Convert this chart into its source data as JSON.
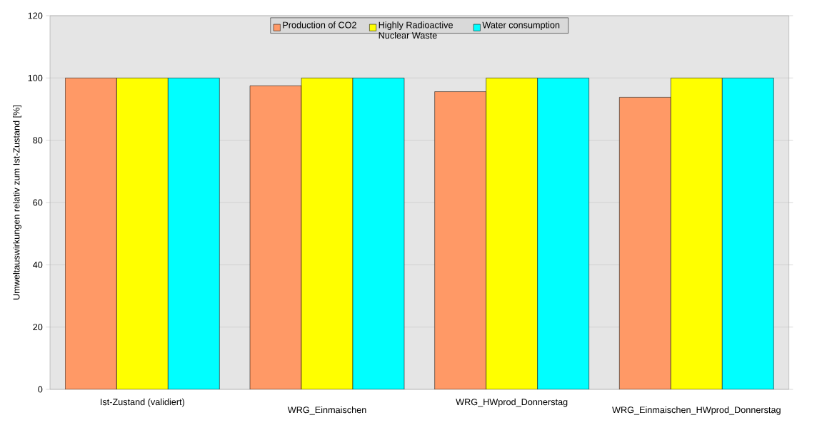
{
  "chart_data": {
    "type": "bar",
    "ylabel": "Umweltauswirkungen relativ zum Ist-Zustand [%]",
    "categories": [
      "Ist-Zustand (validiert)",
      "WRG_Einmaischen",
      "WRG_HWprod_Donnerstag",
      "WRG_Einmaischen_HWprod_Donnerstag"
    ],
    "series": [
      {
        "name": "Production of CO2",
        "color": "#ff9966",
        "values": [
          100,
          97.5,
          95.6,
          93.8
        ]
      },
      {
        "name": "Highly Radioactive Nuclear Waste",
        "color": "#ffff00",
        "values": [
          100,
          100,
          100,
          100
        ]
      },
      {
        "name": "Water consumption",
        "color": "#00ffff",
        "values": [
          100,
          100,
          100,
          100
        ]
      }
    ],
    "ylim": [
      0,
      120
    ],
    "yticks": [
      0,
      20,
      40,
      60,
      80,
      100,
      120
    ],
    "grid": "y",
    "legend": "top"
  }
}
